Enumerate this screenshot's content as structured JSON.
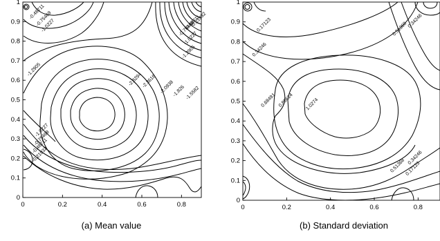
{
  "chart_data": [
    {
      "type": "contour",
      "caption": "(a) Mean value",
      "xlim": [
        0,
        0.9
      ],
      "ylim": [
        0,
        1
      ],
      "xticks": [
        "0",
        "0.2",
        "0.4",
        "0.6",
        "0.8"
      ],
      "yticks": [
        "0",
        "0.1",
        "0.2",
        "0.3",
        "0.4",
        "0.5",
        "0.6",
        "0.7",
        "0.8",
        "0.9",
        "1"
      ],
      "contour_labels": [
        {
          "text": "-0.48711",
          "x": 0.075,
          "y": 0.945
        },
        {
          "text": "-0.75469",
          "x": 0.11,
          "y": 0.91
        },
        {
          "text": "-1.0227",
          "x": 0.13,
          "y": 0.875
        },
        {
          "text": "-1.2905",
          "x": 0.06,
          "y": 0.65
        },
        {
          "text": "-0.21932",
          "x": 0.89,
          "y": 0.905
        },
        {
          "text": "-0.48711",
          "x": 0.86,
          "y": 0.89
        },
        {
          "text": "-0.75469",
          "x": 0.83,
          "y": 0.86
        },
        {
          "text": "-1.0227",
          "x": 0.85,
          "y": 0.81
        },
        {
          "text": "-1.2905",
          "x": 0.84,
          "y": 0.74
        },
        {
          "text": "-2.8294",
          "x": 0.57,
          "y": 0.6
        },
        {
          "text": "-2.3616",
          "x": 0.64,
          "y": 0.59
        },
        {
          "text": "-2.0938",
          "x": 0.73,
          "y": 0.56
        },
        {
          "text": "-1.826",
          "x": 0.79,
          "y": 0.54
        },
        {
          "text": "-1.5582",
          "x": 0.86,
          "y": 0.53
        },
        {
          "text": "-1.0227",
          "x": 0.1,
          "y": 0.34
        },
        {
          "text": "-0.75469",
          "x": 0.1,
          "y": 0.3
        },
        {
          "text": "-0.48711",
          "x": 0.09,
          "y": 0.26
        },
        {
          "text": "-0.21932",
          "x": 0.09,
          "y": 0.215
        }
      ]
    },
    {
      "type": "contour",
      "caption": "(b) Standard deviation",
      "xlim": [
        0,
        0.9
      ],
      "ylim": [
        0,
        1
      ],
      "xticks": [
        "0",
        "0.2",
        "0.4",
        "0.6",
        "0.8"
      ],
      "yticks": [
        "0",
        "0.1",
        "0.2",
        "0.3",
        "0.4",
        "0.5",
        "0.6",
        "0.7",
        "0.8",
        "0.9",
        "1"
      ],
      "contour_labels": [
        {
          "text": "0.17123",
          "x": 0.1,
          "y": 0.88
        },
        {
          "text": "0.34246",
          "x": 0.08,
          "y": 0.755
        },
        {
          "text": "0.51368",
          "x": 0.72,
          "y": 0.86
        },
        {
          "text": "0.34246",
          "x": 0.79,
          "y": 0.9
        },
        {
          "text": "0.68491",
          "x": 0.12,
          "y": 0.5
        },
        {
          "text": "0.85614",
          "x": 0.2,
          "y": 0.5
        },
        {
          "text": "1.0274",
          "x": 0.32,
          "y": 0.48
        },
        {
          "text": "0.51368",
          "x": 0.71,
          "y": 0.17
        },
        {
          "text": "0.34246",
          "x": 0.79,
          "y": 0.21
        },
        {
          "text": "0.17123",
          "x": 0.78,
          "y": 0.155
        }
      ]
    }
  ]
}
